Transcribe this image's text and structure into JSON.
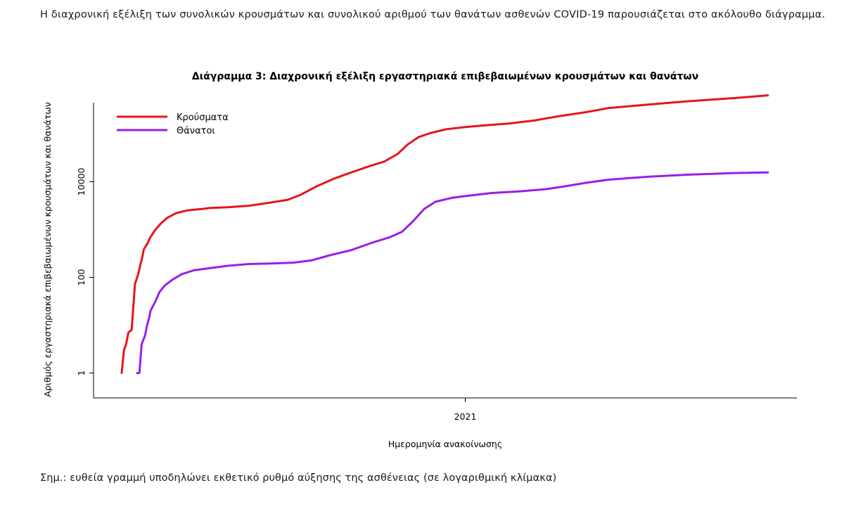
{
  "intro_text": "Η διαχρονική εξέλιξη των συνολικών κρουσμάτων και συνολικού αριθμού των θανάτων ασθενών COVID-19 παρουσιάζεται στο ακόλουθο διάγραμμα.",
  "note_text": "Σημ.: ευθεία γραμμή υποδηλώνει εκθετικό ρυθμό αύξησης της ασθένειας (σε λογαριθμική κλίμακα)",
  "chart_data": {
    "type": "line",
    "title": "Διάγραμμα 3: Διαχρονική εξέλιξη εργαστηριακά επιβεβαιωμένων κρουσμάτων και θανάτων",
    "xlabel": "Ημερομηνία ανακοίνωσης",
    "ylabel": "Αριθμός εργαστηριακά επιβεβαιωμένων κρουσμάτων και θανάτων",
    "y_scale": "log",
    "ylim": [
      0.5,
      450000
    ],
    "y_ticks": [
      1,
      100,
      10000
    ],
    "y_tick_labels": [
      "1",
      "100",
      "10000"
    ],
    "xlim": [
      "2020-02-26",
      "2021-10-05"
    ],
    "x_ticks": [
      "2021-01-01"
    ],
    "x_tick_labels": [
      "2021"
    ],
    "grid": false,
    "legend_position": "top-left",
    "series": [
      {
        "name": "Κρούσματα",
        "color": "#e8141c",
        "points": [
          [
            "2020-02-26",
            1
          ],
          [
            "2020-02-28",
            3
          ],
          [
            "2020-03-01",
            4
          ],
          [
            "2020-03-03",
            7
          ],
          [
            "2020-03-06",
            8
          ],
          [
            "2020-03-09",
            73
          ],
          [
            "2020-03-12",
            117
          ],
          [
            "2020-03-14",
            190
          ],
          [
            "2020-03-15",
            228
          ],
          [
            "2020-03-17",
            387
          ],
          [
            "2020-03-20",
            495
          ],
          [
            "2020-03-23",
            695
          ],
          [
            "2020-03-27",
            966
          ],
          [
            "2020-04-01",
            1314
          ],
          [
            "2020-04-07",
            1755
          ],
          [
            "2020-04-15",
            2192
          ],
          [
            "2020-04-25",
            2506
          ],
          [
            "2020-05-10",
            2710
          ],
          [
            "2020-05-15",
            2810
          ],
          [
            "2020-06-01",
            2918
          ],
          [
            "2020-06-20",
            3148
          ],
          [
            "2020-07-10",
            3672
          ],
          [
            "2020-07-25",
            4193
          ],
          [
            "2020-08-05",
            5270
          ],
          [
            "2020-08-20",
            8000
          ],
          [
            "2020-09-05",
            11700
          ],
          [
            "2020-09-20",
            15600
          ],
          [
            "2020-10-05",
            20500
          ],
          [
            "2020-10-20",
            26500
          ],
          [
            "2020-11-01",
            38000
          ],
          [
            "2020-11-10",
            60000
          ],
          [
            "2020-11-20",
            86000
          ],
          [
            "2020-12-01",
            105000
          ],
          [
            "2020-12-15",
            125000
          ],
          [
            "2021-01-01",
            139000
          ],
          [
            "2021-01-20",
            152000
          ],
          [
            "2021-02-10",
            165000
          ],
          [
            "2021-03-05",
            192000
          ],
          [
            "2021-03-25",
            232000
          ],
          [
            "2021-04-20",
            285000
          ],
          [
            "2021-05-10",
            345000
          ],
          [
            "2021-06-15",
            410000
          ],
          [
            "2021-07-20",
            480000
          ],
          [
            "2021-09-01",
            560000
          ],
          [
            "2021-10-01",
            640000
          ]
        ]
      },
      {
        "name": "Θάνατοι",
        "color": "#9a1ee6",
        "points": [
          [
            "2020-03-11",
            1
          ],
          [
            "2020-03-13",
            1
          ],
          [
            "2020-03-15",
            4
          ],
          [
            "2020-03-18",
            6
          ],
          [
            "2020-03-20",
            10
          ],
          [
            "2020-03-22",
            15
          ],
          [
            "2020-03-23",
            20
          ],
          [
            "2020-03-27",
            30
          ],
          [
            "2020-03-31",
            49
          ],
          [
            "2020-04-05",
            68
          ],
          [
            "2020-04-12",
            90
          ],
          [
            "2020-04-20",
            116
          ],
          [
            "2020-05-01",
            140
          ],
          [
            "2020-05-15",
            155
          ],
          [
            "2020-06-01",
            175
          ],
          [
            "2020-06-20",
            190
          ],
          [
            "2020-07-10",
            195
          ],
          [
            "2020-07-30",
            203
          ],
          [
            "2020-08-15",
            226
          ],
          [
            "2020-09-01",
            290
          ],
          [
            "2020-09-20",
            370
          ],
          [
            "2020-10-10",
            540
          ],
          [
            "2020-10-25",
            690
          ],
          [
            "2020-11-05",
            900
          ],
          [
            "2020-11-15",
            1500
          ],
          [
            "2020-11-25",
            2700
          ],
          [
            "2020-12-05",
            3800
          ],
          [
            "2020-12-20",
            4600
          ],
          [
            "2021-01-01",
            5000
          ],
          [
            "2021-01-25",
            5800
          ],
          [
            "2021-02-20",
            6300
          ],
          [
            "2021-03-15",
            7000
          ],
          [
            "2021-04-01",
            8000
          ],
          [
            "2021-04-20",
            9500
          ],
          [
            "2021-05-10",
            11000
          ],
          [
            "2021-06-15",
            12700
          ],
          [
            "2021-07-20",
            14000
          ],
          [
            "2021-09-01",
            15200
          ],
          [
            "2021-10-01",
            15600
          ]
        ]
      }
    ]
  }
}
